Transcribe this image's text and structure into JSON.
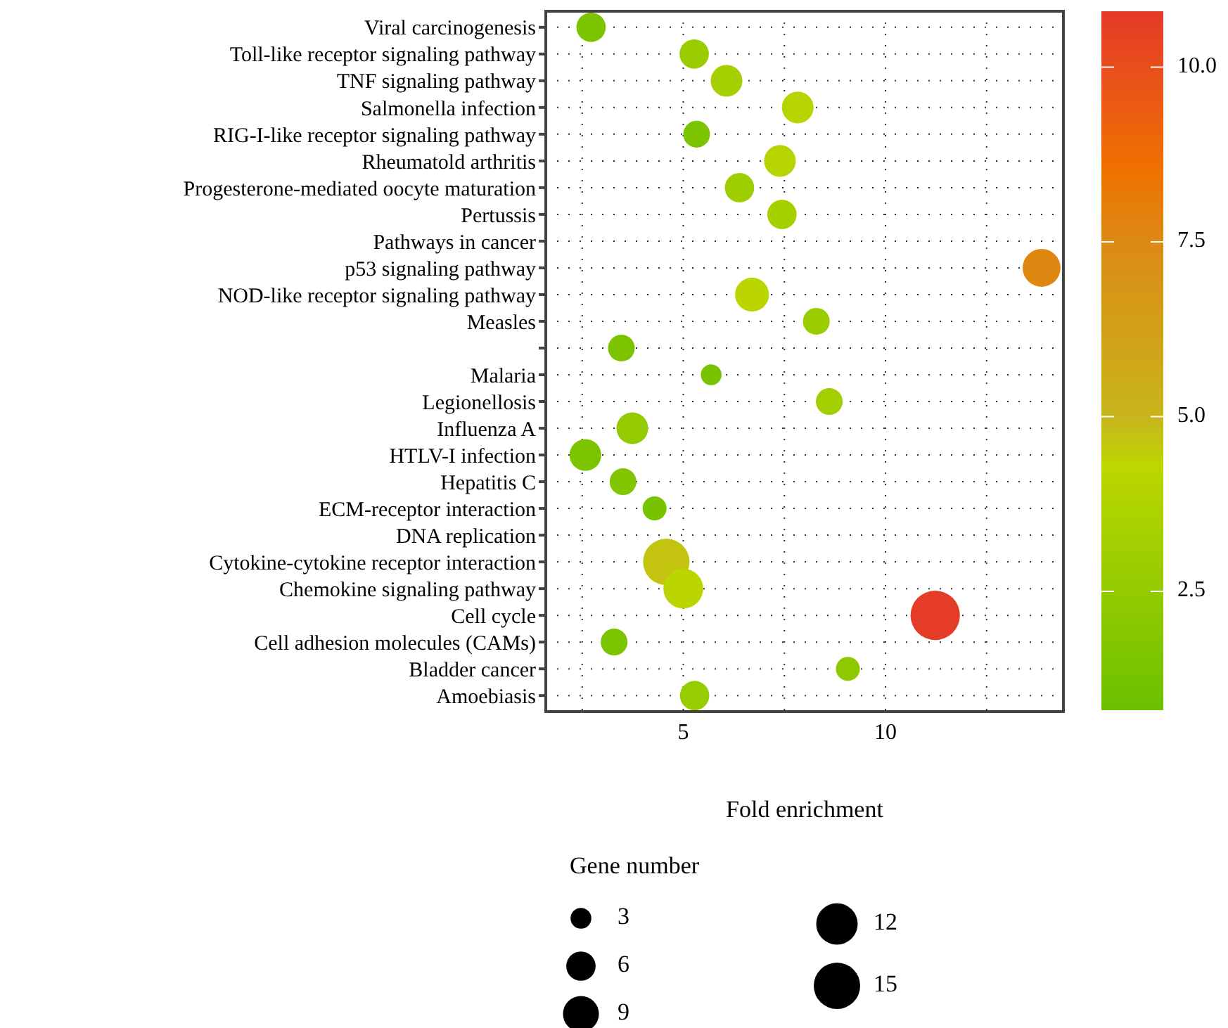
{
  "chart_data": {
    "type": "bubble",
    "orientation": "horizontal",
    "xlabel": "Fold enrichment",
    "legend_title": "Gene number",
    "categories": [
      "Viral carcinogenesis",
      "Toll-like receptor signaling pathway",
      "TNF signaling pathway",
      "Salmonella infection",
      "RIG-I-like receptor signaling pathway",
      "Rheumatold arthritis",
      "Progesterone-mediated oocyte maturation",
      "Pertussis",
      "Pathways in cancer",
      "p53 signaling pathway",
      "NOD-like receptor signaling pathway",
      "Measles",
      null,
      "Malaria",
      "Legionellosis",
      "Influenza A",
      "HTLV-I infection",
      "Hepatitis C",
      "ECM-receptor interaction",
      "DNA replication",
      "Cytokine-cytokine receptor interaction",
      "Chemokine signaling pathway",
      "Cell cycle",
      "Cell adhesion molecules (CAMs)",
      "Bladder cancer",
      "Amoebiasis"
    ],
    "values": [
      2.72,
      5.27,
      6.07,
      7.83,
      5.33,
      7.39,
      6.39,
      7.44,
      null,
      13.86,
      6.7,
      8.29,
      3.47,
      5.69,
      8.61,
      3.74,
      2.58,
      3.51,
      4.29,
      null,
      4.58,
      5.0,
      11.23,
      3.29,
      9.07,
      5.28
    ],
    "sizes": [
      6,
      6,
      7,
      7,
      5,
      7,
      6,
      6,
      null,
      10,
      8,
      5,
      5,
      3,
      5,
      7,
      7,
      5,
      4,
      null,
      15,
      11,
      17,
      5,
      4,
      6
    ],
    "cvalues": [
      1.5,
      2.8,
      3.3,
      4.0,
      1.5,
      4.0,
      3.0,
      3.3,
      null,
      7.6,
      4.2,
      2.8,
      1.5,
      1.3,
      3.2,
      2.5,
      1.5,
      1.7,
      1.3,
      null,
      4.7,
      4.2,
      10.7,
      1.5,
      2.3,
      2.7
    ],
    "size_legend": [
      3,
      6,
      9,
      12,
      15
    ],
    "xlim": [
      1.6,
      14.4
    ],
    "xticks": [
      {
        "value": 2.5,
        "label": null
      },
      5,
      {
        "value": 7.5,
        "label": null
      },
      10,
      {
        "value": 12.5,
        "label": null
      }
    ],
    "clim": [
      0.8,
      10.8
    ],
    "cticks": [
      2.5,
      {
        "value": 5,
        "label": "5.0"
      },
      7.5,
      {
        "value": 10,
        "label": "10.0"
      }
    ],
    "grid": true
  }
}
